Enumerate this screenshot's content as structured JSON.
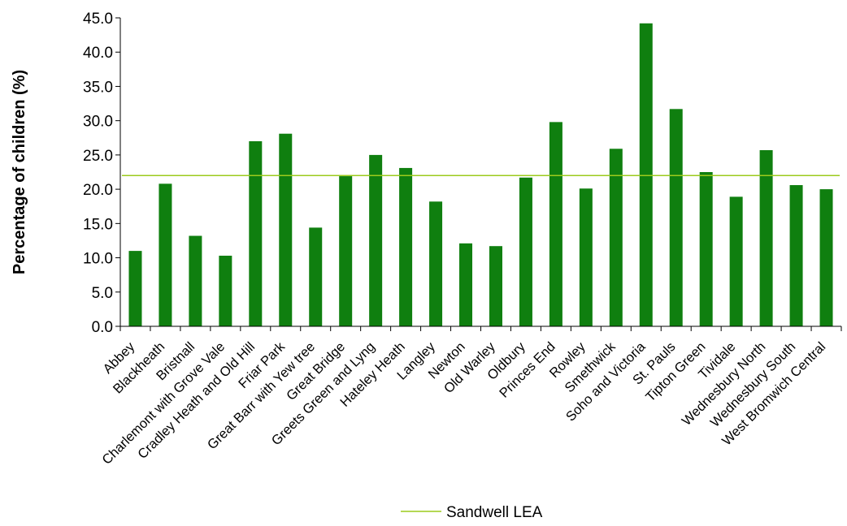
{
  "chart_data": {
    "type": "bar",
    "title": "",
    "xlabel": "",
    "ylabel": "Percentage of children (%)",
    "ylim": [
      0,
      45
    ],
    "ytick_step": 5,
    "ytick_format": "one-decimal",
    "grid": false,
    "categories": [
      "Abbey",
      "Blackheath",
      "Bristnall",
      "Charlemont with Grove Vale",
      "Cradley Heath and Old Hill",
      "Friar Park",
      "Great Barr with Yew tree",
      "Great Bridge",
      "Greets Green and Lyng",
      "Hateley Heath",
      "Langley",
      "Newton",
      "Old Warley",
      "Oldbury",
      "Princes End",
      "Rowley",
      "Smethwick",
      "Soho and Victoria",
      "St. Pauls",
      "Tipton Green",
      "Tividale",
      "Wednesbury North",
      "Wednesbury South",
      "West Bromwich Central"
    ],
    "series": [
      {
        "values": [
          11.0,
          20.8,
          13.2,
          10.3,
          27.0,
          28.1,
          14.4,
          21.9,
          25.0,
          23.1,
          18.2,
          12.1,
          11.7,
          21.7,
          29.8,
          20.1,
          25.9,
          44.2,
          31.7,
          22.5,
          18.9,
          25.7,
          20.6,
          20.0
        ],
        "color": "#0f7f0f"
      }
    ],
    "reference_lines": [
      {
        "name": "Sandwell LEA",
        "value": 22.0,
        "color": "#9ccb1c"
      }
    ],
    "legend": {
      "position": "bottom",
      "entries": [
        "Sandwell LEA"
      ]
    }
  }
}
